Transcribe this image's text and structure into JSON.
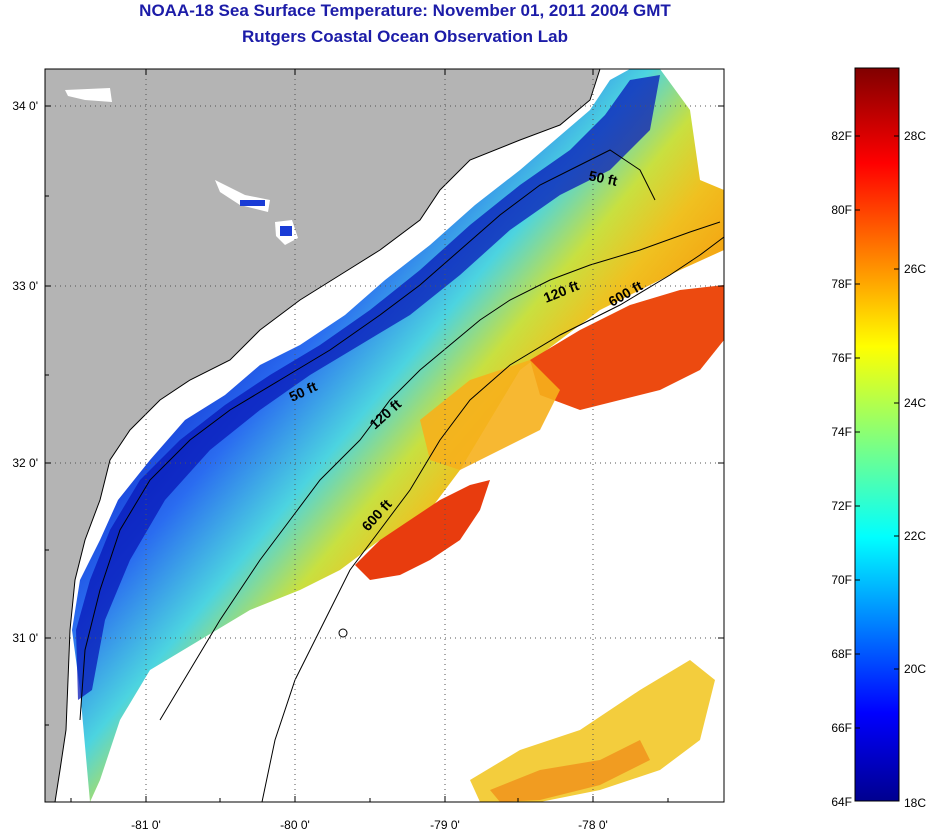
{
  "title": "NOAA-18 Sea Surface Temperature:  November 01, 2011 2004 GMT",
  "subtitle": "Rutgers Coastal Ocean Observation Lab",
  "latitude_labels": [
    "34 0'",
    "33 0'",
    "32 0'",
    "31 0'"
  ],
  "longitude_labels": [
    "-81 0'",
    "-80 0'",
    "-79 0'",
    "-78 0'"
  ],
  "contour_labels": [
    "50 ft",
    "120 ft",
    "600 ft",
    "50 ft",
    "120 ft",
    "600 ft"
  ],
  "colorbar": {
    "fahrenheit_labels": [
      "82F",
      "80F",
      "78F",
      "76F",
      "74F",
      "72F",
      "70F",
      "68F",
      "66F",
      "64F"
    ],
    "celsius_labels": [
      "28C",
      "26C",
      "24C",
      "22C",
      "20C",
      "18C"
    ],
    "range_f": [
      64,
      83.8
    ],
    "colormap": "jet"
  },
  "colors": {
    "title": "#1c1ca8",
    "land": "#b4b4b4",
    "ocean_nodata": "#ffffff",
    "warm_core": "#e8400c",
    "cool_shelf": "#1a3cd6"
  }
}
